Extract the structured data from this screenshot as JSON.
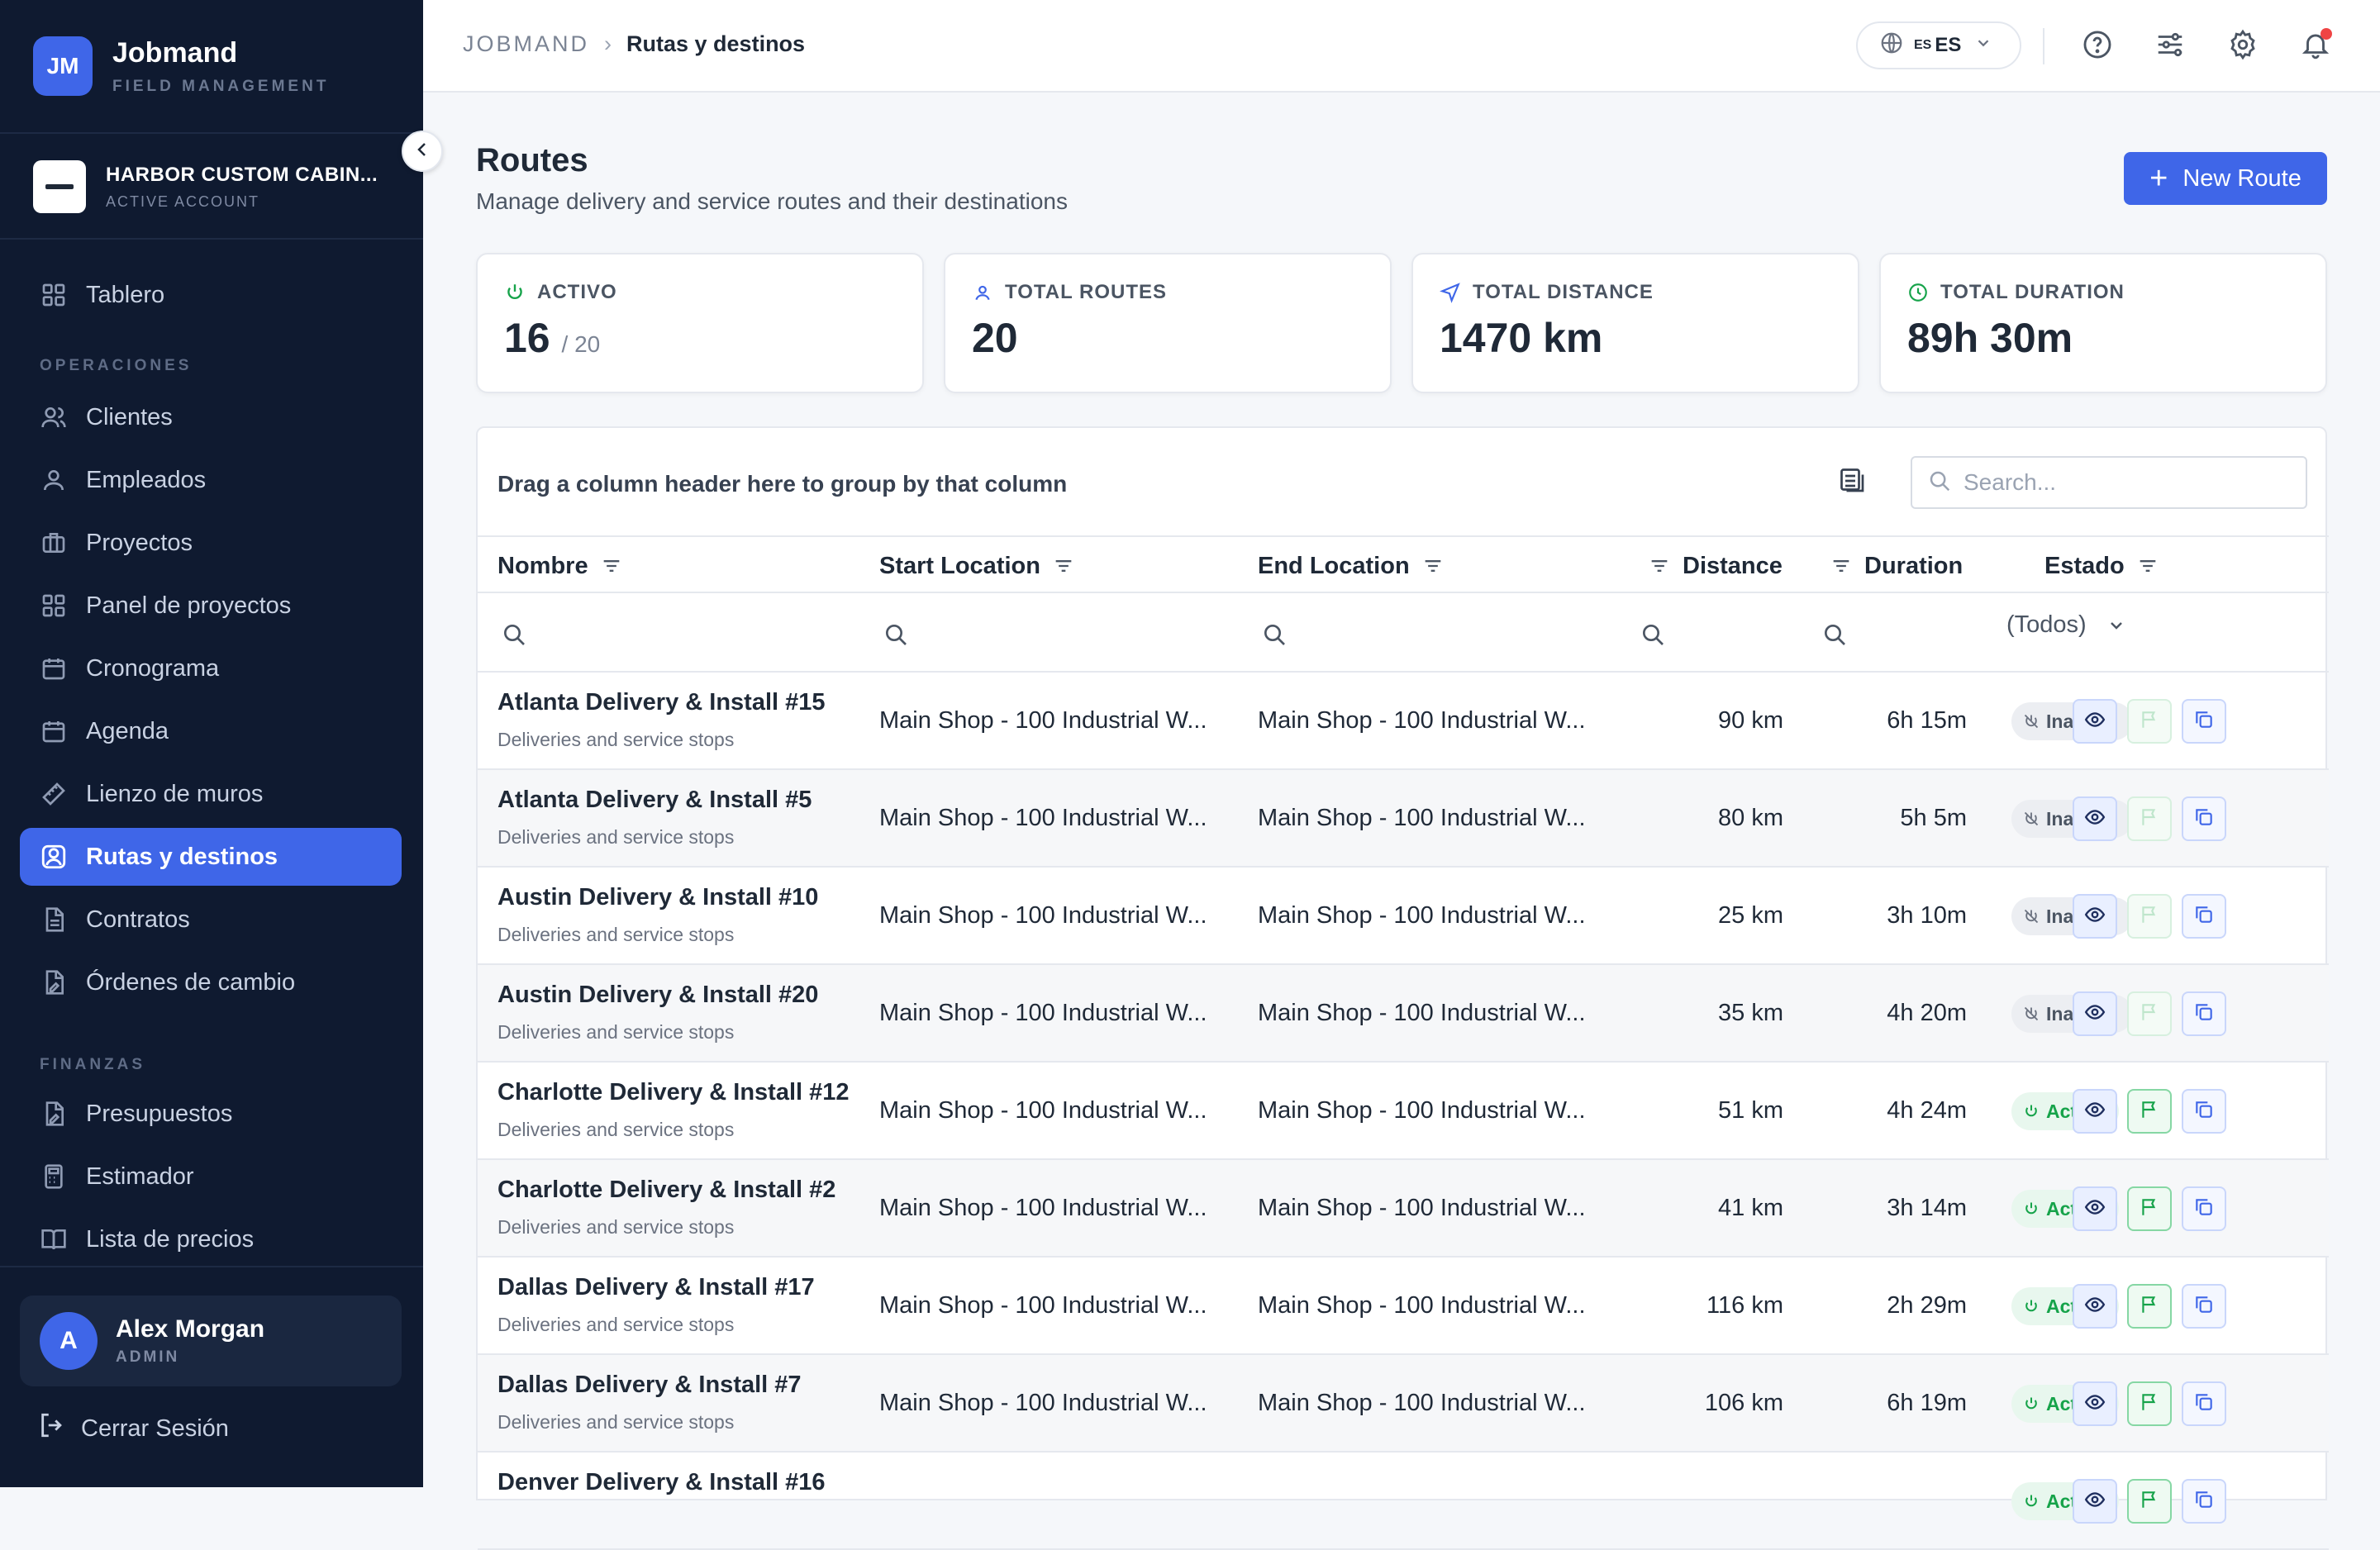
{
  "brand": {
    "initials": "JM",
    "name": "Jobmand",
    "subtitle": "FIELD MANAGEMENT"
  },
  "account": {
    "name": "HARBOR CUSTOM CABIN...",
    "status": "ACTIVE ACCOUNT"
  },
  "nav": {
    "dashboard": "Tablero",
    "section_operations": "OPERACIONES",
    "clients": "Clientes",
    "employees": "Empleados",
    "projects": "Proyectos",
    "project_panel": "Panel de proyectos",
    "schedule": "Cronograma",
    "agenda": "Agenda",
    "wall_canvas": "Lienzo de muros",
    "routes": "Rutas y destinos",
    "contracts": "Contratos",
    "change_orders": "Órdenes de cambio",
    "section_finance": "FINANZAS",
    "budgets": "Presupuestos",
    "estimator": "Estimador",
    "price_list": "Lista de precios"
  },
  "user": {
    "initial": "A",
    "name": "Alex Morgan",
    "role": "ADMIN"
  },
  "logout_label": "Cerrar Sesión",
  "header": {
    "breadcrumb_root": "JOBMAND",
    "breadcrumb_sep": "›",
    "breadcrumb_current": "Rutas y destinos",
    "lang_flag": "ES",
    "lang_code": "ES"
  },
  "page": {
    "title": "Routes",
    "subtitle": "Manage delivery and service routes and their destinations",
    "new_button": "New Route"
  },
  "stats": {
    "active_label": "ACTIVO",
    "active_value": "16",
    "active_total": "/ 20",
    "routes_label": "TOTAL ROUTES",
    "routes_value": "20",
    "distance_label": "TOTAL DISTANCE",
    "distance_value": "1470 km",
    "duration_label": "TOTAL DURATION",
    "duration_value": "89h 30m"
  },
  "grid": {
    "group_hint": "Drag a column header here to group by that column",
    "search_placeholder": "Search...",
    "columns": {
      "name": "Nombre",
      "start": "Start Location",
      "end": "End Location",
      "distance": "Distance",
      "duration": "Duration",
      "status": "Estado"
    },
    "status_filter": "(Todos)",
    "rows": [
      {
        "name": "Atlanta Delivery & Install #15",
        "desc": "Deliveries and service stops",
        "start": "Main Shop - 100 Industrial W...",
        "end": "Main Shop - 100 Industrial W...",
        "distance": "90 km",
        "duration": "6h 15m",
        "status": "Inactivo"
      },
      {
        "name": "Atlanta Delivery & Install #5",
        "desc": "Deliveries and service stops",
        "start": "Main Shop - 100 Industrial W...",
        "end": "Main Shop - 100 Industrial W...",
        "distance": "80 km",
        "duration": "5h 5m",
        "status": "Inactivo"
      },
      {
        "name": "Austin Delivery & Install #10",
        "desc": "Deliveries and service stops",
        "start": "Main Shop - 100 Industrial W...",
        "end": "Main Shop - 100 Industrial W...",
        "distance": "25 km",
        "duration": "3h 10m",
        "status": "Inactivo"
      },
      {
        "name": "Austin Delivery & Install #20",
        "desc": "Deliveries and service stops",
        "start": "Main Shop - 100 Industrial W...",
        "end": "Main Shop - 100 Industrial W...",
        "distance": "35 km",
        "duration": "4h 20m",
        "status": "Inactivo"
      },
      {
        "name": "Charlotte Delivery & Install #12",
        "desc": "Deliveries and service stops",
        "start": "Main Shop - 100 Industrial W...",
        "end": "Main Shop - 100 Industrial W...",
        "distance": "51 km",
        "duration": "4h 24m",
        "status": "Activo"
      },
      {
        "name": "Charlotte Delivery & Install #2",
        "desc": "Deliveries and service stops",
        "start": "Main Shop - 100 Industrial W...",
        "end": "Main Shop - 100 Industrial W...",
        "distance": "41 km",
        "duration": "3h 14m",
        "status": "Activo"
      },
      {
        "name": "Dallas Delivery & Install #17",
        "desc": "Deliveries and service stops",
        "start": "Main Shop - 100 Industrial W...",
        "end": "Main Shop - 100 Industrial W...",
        "distance": "116 km",
        "duration": "2h 29m",
        "status": "Activo"
      },
      {
        "name": "Dallas Delivery & Install #7",
        "desc": "Deliveries and service stops",
        "start": "Main Shop - 100 Industrial W...",
        "end": "Main Shop - 100 Industrial W...",
        "distance": "106 km",
        "duration": "6h 19m",
        "status": "Activo"
      },
      {
        "name": "Denver Delivery & Install #16",
        "desc": "",
        "start": "",
        "end": "",
        "distance": "",
        "duration": "",
        "status": "Activo"
      }
    ]
  },
  "colors": {
    "accent": "#3f66e8",
    "sidebar_bg": "#0f1a30",
    "active_green": "#16a34a",
    "notification": "#ef4444"
  }
}
